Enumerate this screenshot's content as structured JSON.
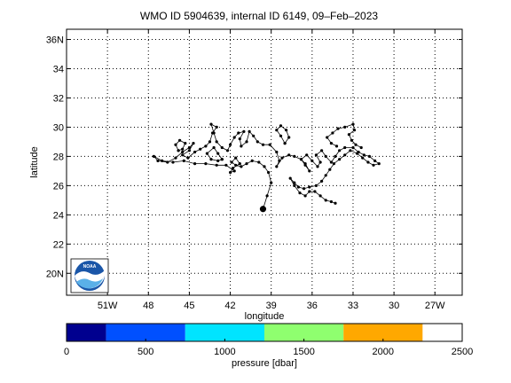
{
  "chart_data": {
    "type": "scatter",
    "title": "WMO ID 5904639, internal ID 6149, 09–Feb–2023",
    "xlabel": "longitude",
    "ylabel": "latitude",
    "xlim": [
      -54,
      -25
    ],
    "ylim": [
      18.5,
      36.7
    ],
    "grid": true,
    "x_ticks": [
      {
        "value": -51,
        "label": "51W"
      },
      {
        "value": -48,
        "label": "48"
      },
      {
        "value": -45,
        "label": "45"
      },
      {
        "value": -42,
        "label": "42"
      },
      {
        "value": -39,
        "label": "39"
      },
      {
        "value": -36,
        "label": "36"
      },
      {
        "value": -33,
        "label": "33"
      },
      {
        "value": -30,
        "label": "30"
      },
      {
        "value": -27,
        "label": "27W"
      }
    ],
    "y_ticks": [
      {
        "value": 20,
        "label": "20N"
      },
      {
        "value": 22,
        "label": "22"
      },
      {
        "value": 24,
        "label": "24"
      },
      {
        "value": 26,
        "label": "26"
      },
      {
        "value": 28,
        "label": "28"
      },
      {
        "value": 30,
        "label": "30"
      },
      {
        "value": 32,
        "label": "32"
      },
      {
        "value": 34,
        "label": "34"
      },
      {
        "value": 36,
        "label": "36N"
      }
    ],
    "track": {
      "color": "#000000",
      "start": [
        -39.6,
        24.4
      ],
      "points": [
        [
          -39.6,
          24.4
        ],
        [
          -39.3,
          25.3
        ],
        [
          -39.0,
          26.2
        ],
        [
          -39.2,
          26.9
        ],
        [
          -39.5,
          27.3
        ],
        [
          -39.9,
          27.6
        ],
        [
          -40.4,
          27.7
        ],
        [
          -40.8,
          27.5
        ],
        [
          -41.2,
          27.3
        ],
        [
          -41.6,
          27.4
        ],
        [
          -41.9,
          27.6
        ],
        [
          -41.6,
          27.9
        ],
        [
          -41.3,
          27.5
        ],
        [
          -41.8,
          27.2
        ],
        [
          -42.0,
          26.9
        ],
        [
          -41.7,
          27.0
        ],
        [
          -42.3,
          27.4
        ],
        [
          -43.0,
          27.4
        ],
        [
          -43.8,
          27.5
        ],
        [
          -44.6,
          27.5
        ],
        [
          -45.4,
          27.7
        ],
        [
          -46.2,
          27.6
        ],
        [
          -47.0,
          27.7
        ],
        [
          -47.6,
          28.0
        ],
        [
          -47.3,
          27.7
        ],
        [
          -46.6,
          27.6
        ],
        [
          -46.0,
          27.9
        ],
        [
          -45.5,
          28.3
        ],
        [
          -45.0,
          28.6
        ],
        [
          -44.7,
          28.9
        ],
        [
          -45.0,
          28.4
        ],
        [
          -45.5,
          28.1
        ],
        [
          -45.1,
          27.9
        ],
        [
          -44.6,
          28.3
        ],
        [
          -44.2,
          28.5
        ],
        [
          -43.8,
          28.7
        ],
        [
          -43.5,
          29.0
        ],
        [
          -43.3,
          29.6
        ],
        [
          -43.0,
          30.0
        ],
        [
          -43.4,
          30.2
        ],
        [
          -43.2,
          29.6
        ],
        [
          -43.0,
          29.0
        ],
        [
          -42.6,
          28.6
        ],
        [
          -42.2,
          28.4
        ],
        [
          -42.0,
          28.8
        ],
        [
          -41.7,
          29.3
        ],
        [
          -41.4,
          29.6
        ],
        [
          -41.0,
          29.7
        ],
        [
          -41.3,
          29.2
        ],
        [
          -41.2,
          28.7
        ],
        [
          -40.8,
          29.0
        ],
        [
          -40.6,
          29.7
        ],
        [
          -40.3,
          29.4
        ],
        [
          -40.0,
          29.0
        ],
        [
          -39.6,
          28.8
        ],
        [
          -39.1,
          28.8
        ],
        [
          -38.6,
          28.3
        ],
        [
          -38.4,
          27.7
        ],
        [
          -38.6,
          27.3
        ],
        [
          -38.2,
          27.9
        ],
        [
          -37.7,
          28.1
        ],
        [
          -37.3,
          28.0
        ],
        [
          -36.8,
          27.8
        ],
        [
          -36.5,
          27.5
        ],
        [
          -36.2,
          27.0
        ],
        [
          -36.5,
          27.4
        ],
        [
          -36.8,
          27.8
        ],
        [
          -36.4,
          28.1
        ],
        [
          -36.0,
          27.7
        ],
        [
          -35.6,
          27.3
        ],
        [
          -35.4,
          27.6
        ],
        [
          -35.7,
          28.1
        ],
        [
          -35.3,
          28.4
        ],
        [
          -35.0,
          28.0
        ],
        [
          -34.6,
          27.6
        ],
        [
          -34.3,
          28.0
        ],
        [
          -34.0,
          28.4
        ],
        [
          -33.6,
          28.6
        ],
        [
          -33.0,
          28.6
        ],
        [
          -32.6,
          28.3
        ],
        [
          -32.2,
          28.1
        ],
        [
          -31.8,
          28.0
        ],
        [
          -31.4,
          27.7
        ],
        [
          -31.1,
          27.5
        ],
        [
          -31.5,
          27.4
        ],
        [
          -31.9,
          27.6
        ],
        [
          -32.3,
          27.9
        ],
        [
          -32.7,
          28.2
        ],
        [
          -33.2,
          28.4
        ],
        [
          -33.6,
          28.1
        ],
        [
          -34.0,
          27.8
        ],
        [
          -34.4,
          27.5
        ],
        [
          -34.7,
          27.1
        ],
        [
          -35.0,
          26.7
        ],
        [
          -35.3,
          26.3
        ],
        [
          -35.7,
          26.0
        ],
        [
          -36.2,
          25.9
        ],
        [
          -36.6,
          25.8
        ],
        [
          -37.0,
          25.9
        ],
        [
          -37.3,
          26.2
        ],
        [
          -37.6,
          26.5
        ],
        [
          -37.3,
          26.0
        ],
        [
          -36.9,
          25.5
        ],
        [
          -36.5,
          25.3
        ],
        [
          -36.2,
          25.6
        ],
        [
          -35.8,
          25.6
        ],
        [
          -35.4,
          25.3
        ],
        [
          -35.0,
          25.0
        ],
        [
          -34.6,
          24.9
        ],
        [
          -34.3,
          24.8
        ]
      ],
      "loops": [
        [
          [
            -34.2,
            28.7
          ],
          [
            -34.6,
            28.9
          ],
          [
            -34.9,
            29.3
          ],
          [
            -34.5,
            29.6
          ],
          [
            -34.1,
            29.9
          ],
          [
            -33.6,
            30.0
          ],
          [
            -33.0,
            30.2
          ],
          [
            -32.9,
            29.8
          ],
          [
            -33.3,
            29.5
          ],
          [
            -33.1,
            29.1
          ],
          [
            -32.8,
            28.8
          ],
          [
            -32.4,
            28.6
          ]
        ],
        [
          [
            -38.0,
            28.9
          ],
          [
            -37.7,
            29.3
          ],
          [
            -37.9,
            29.8
          ],
          [
            -38.3,
            30.1
          ],
          [
            -38.6,
            29.8
          ],
          [
            -38.3,
            29.4
          ],
          [
            -38.0,
            28.9
          ]
        ],
        [
          [
            -45.8,
            28.4
          ],
          [
            -46.0,
            28.8
          ],
          [
            -45.7,
            29.1
          ],
          [
            -45.3,
            28.9
          ],
          [
            -45.5,
            28.5
          ],
          [
            -45.8,
            28.4
          ]
        ],
        [
          [
            -42.6,
            27.8
          ],
          [
            -42.9,
            28.2
          ],
          [
            -43.2,
            28.6
          ],
          [
            -43.7,
            28.2
          ],
          [
            -43.4,
            27.8
          ],
          [
            -42.9,
            27.7
          ],
          [
            -42.6,
            27.8
          ]
        ]
      ]
    },
    "colorbar": {
      "label": "pressure [dbar]",
      "range": [
        0,
        2500
      ],
      "ticks": [
        {
          "value": 0,
          "label": "0"
        },
        {
          "value": 500,
          "label": "500"
        },
        {
          "value": 1000,
          "label": "1000"
        },
        {
          "value": 1500,
          "label": "1500"
        },
        {
          "value": 2000,
          "label": "2000"
        },
        {
          "value": 2500,
          "label": "2500"
        }
      ],
      "bands": [
        {
          "from": 0,
          "to": 250,
          "color": "#00008f"
        },
        {
          "from": 250,
          "to": 750,
          "color": "#0050ff"
        },
        {
          "from": 750,
          "to": 1250,
          "color": "#00e4ff"
        },
        {
          "from": 1250,
          "to": 1750,
          "color": "#8fff6f"
        },
        {
          "from": 1750,
          "to": 2250,
          "color": "#ffa800"
        },
        {
          "from": 2250,
          "to": 2500,
          "color": "#ffffff"
        }
      ]
    },
    "logo": {
      "text": "NOAA",
      "icon": "noaa-logo-icon"
    }
  }
}
